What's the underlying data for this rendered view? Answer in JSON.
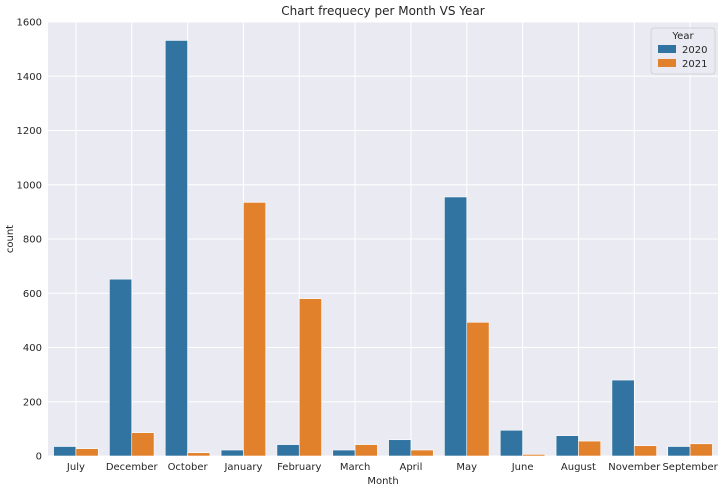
{
  "chart_data": {
    "type": "bar",
    "title": "Chart frequecy per Month VS Year",
    "xlabel": "Month",
    "ylabel": "count",
    "ylim": [
      0,
      1600
    ],
    "yticks": [
      0,
      200,
      400,
      600,
      800,
      1000,
      1200,
      1400,
      1600
    ],
    "grid": true,
    "legend": {
      "title": "Year",
      "position": "top-right"
    },
    "categories": [
      "July",
      "December",
      "October",
      "January",
      "February",
      "March",
      "April",
      "May",
      "June",
      "August",
      "November",
      "September"
    ],
    "series": [
      {
        "name": "2020",
        "color": "#3274a1",
        "values": [
          35,
          652,
          1532,
          22,
          42,
          22,
          60,
          955,
          95,
          75,
          280,
          35
        ]
      },
      {
        "name": "2021",
        "color": "#e1812c",
        "values": [
          27,
          86,
          12,
          935,
          580,
          42,
          22,
          493,
          6,
          55,
          38,
          45
        ]
      }
    ]
  }
}
